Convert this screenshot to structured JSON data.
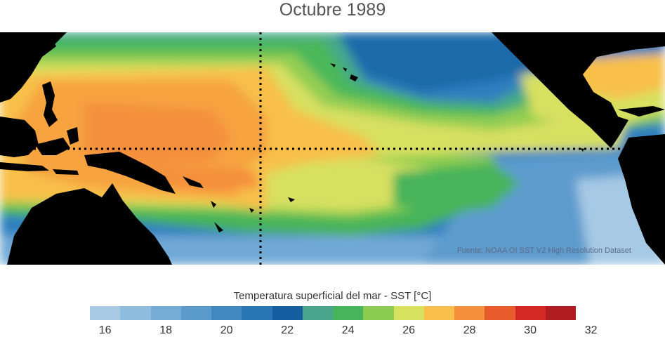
{
  "title": "Octubre 1989",
  "source_note": "Fuente: NOAA OI SST V2 High Resolution Dataset",
  "colorbar": {
    "label": "Temperatura superficial del mar - SST  [°C]",
    "ticks": [
      "16",
      "18",
      "20",
      "22",
      "24",
      "26",
      "28",
      "30",
      "32"
    ],
    "colors": [
      "#a8cae6",
      "#8ebde0",
      "#74acd6",
      "#5b9bcc",
      "#3f88c0",
      "#2876b4",
      "#155fa0",
      "#4aa58c",
      "#46b45a",
      "#8ccc50",
      "#d8e060",
      "#f8c048",
      "#f4903c",
      "#e85c2c",
      "#d42a24",
      "#b01c22"
    ]
  },
  "map": {
    "land_color": "#000000",
    "gridline_style": "dotted",
    "equator_line": true,
    "dateline": true
  }
}
